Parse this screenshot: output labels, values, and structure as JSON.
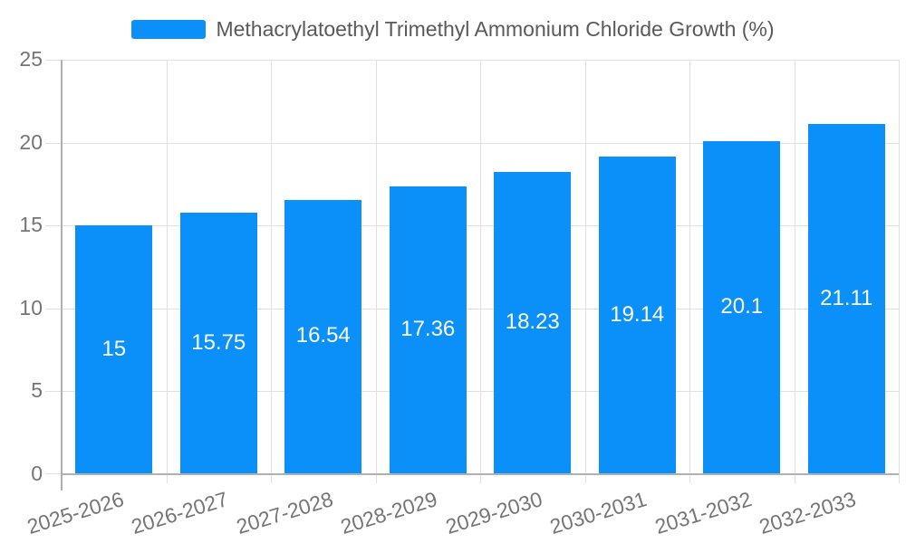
{
  "chart_data": {
    "type": "bar",
    "title": "Methacrylatoethyl Trimethyl Ammonium Chloride Growth (%)",
    "legend": {
      "position": "top",
      "entries": [
        "Methacrylatoethyl Trimethyl Ammonium Chloride Growth (%)"
      ]
    },
    "categories": [
      "2025-2026",
      "2026-2027",
      "2027-2028",
      "2028-2029",
      "2029-2030",
      "2030-2031",
      "2031-2032",
      "2032-2033"
    ],
    "values": [
      15,
      15.75,
      16.54,
      17.36,
      18.23,
      19.14,
      20.1,
      21.11
    ],
    "value_labels": [
      "15",
      "15.75",
      "16.54",
      "17.36",
      "18.23",
      "19.14",
      "20.1",
      "21.11"
    ],
    "xlabel": "",
    "ylabel": "",
    "ylim": [
      0,
      25
    ],
    "yticks": [
      0,
      5,
      10,
      15,
      20,
      25
    ],
    "ytick_labels": [
      "0",
      "5",
      "10",
      "15",
      "20",
      "25"
    ],
    "grid": true,
    "colors": {
      "bar": "#0a90f8",
      "gridline": "#e0e0e0",
      "axis_line": "#b0b0b0",
      "tick_label": "#757575",
      "title_text": "#5a5a5a",
      "bar_label": "#ffffff",
      "background": "#ffffff"
    }
  }
}
